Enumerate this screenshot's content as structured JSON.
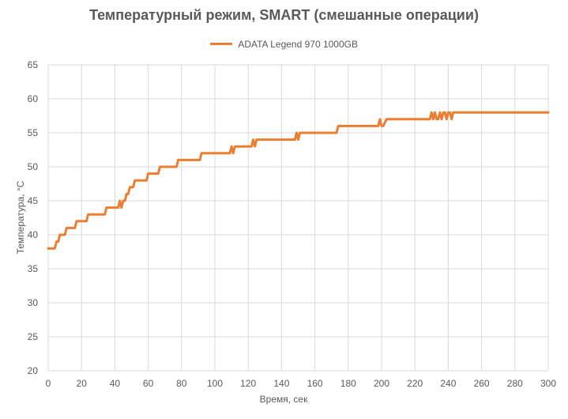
{
  "chart_data": {
    "type": "line",
    "title": "Температурный режим, SMART (смешанные операции)",
    "xlabel": "Время,  сек",
    "ylabel": "Температура, °С",
    "xlim": [
      0,
      300
    ],
    "ylim": [
      20,
      65
    ],
    "x_ticks": [
      0,
      20,
      40,
      60,
      80,
      100,
      120,
      140,
      160,
      180,
      200,
      220,
      240,
      260,
      280,
      300
    ],
    "y_ticks": [
      20,
      25,
      30,
      35,
      40,
      45,
      50,
      55,
      60,
      65
    ],
    "grid": true,
    "legend_position": "top",
    "colors": {
      "series": "#ED7D31",
      "grid": "#D9D9D9"
    },
    "series": [
      {
        "name": "ADATA Legend 970 1000GB",
        "x": [
          0,
          4,
          5,
          6,
          7,
          8,
          9,
          10,
          11,
          12,
          16,
          17,
          20,
          21,
          23,
          24,
          34,
          35,
          41,
          42,
          43,
          44,
          45,
          46,
          47,
          48,
          49,
          50,
          51,
          52,
          53,
          59,
          60,
          66,
          67,
          77,
          78,
          91,
          92,
          109,
          110,
          111,
          112,
          113,
          122,
          123,
          124,
          125,
          126,
          148,
          149,
          150,
          151,
          152,
          173,
          174,
          198,
          199,
          200,
          201,
          203,
          204,
          229,
          230,
          231,
          232,
          233,
          234,
          235,
          236,
          237,
          238,
          239,
          240,
          241,
          242,
          243,
          244,
          300
        ],
        "y": [
          38,
          38,
          39,
          39,
          40,
          40,
          40,
          40,
          41,
          41,
          41,
          42,
          42,
          42,
          42,
          43,
          43,
          44,
          44,
          44,
          45,
          44,
          45,
          45,
          46,
          46,
          47,
          47,
          47,
          48,
          48,
          48,
          49,
          49,
          50,
          50,
          51,
          51,
          52,
          52,
          53,
          52,
          53,
          53,
          53,
          54,
          53,
          54,
          54,
          54,
          55,
          54,
          55,
          55,
          55,
          56,
          56,
          57,
          56,
          56,
          57,
          57,
          57,
          58,
          57,
          58,
          57,
          57,
          58,
          57,
          58,
          58,
          57,
          58,
          58,
          57,
          58,
          58,
          58
        ]
      }
    ]
  }
}
